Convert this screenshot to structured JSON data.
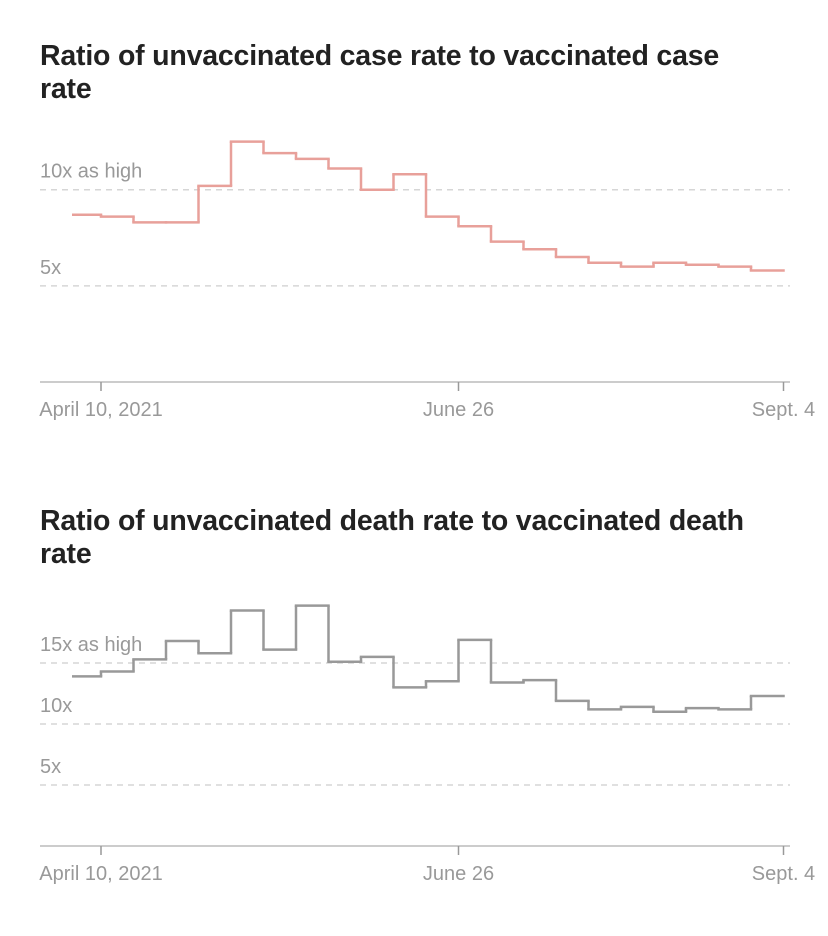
{
  "chart_data": [
    {
      "type": "step",
      "title": "Ratio of unvaccinated case rate to vaccinated case rate",
      "values": [
        8.7,
        8.6,
        8.3,
        8.3,
        10.2,
        12.5,
        11.9,
        11.6,
        11.1,
        10.0,
        10.8,
        8.6,
        8.1,
        7.3,
        6.9,
        6.5,
        6.2,
        6.0,
        6.2,
        6.1,
        6.0,
        5.8
      ],
      "color": "#e8a09a",
      "ylim": [
        0,
        13
      ],
      "yticks": [
        {
          "value": 5,
          "label": "5x"
        },
        {
          "value": 10,
          "label": "10x as high"
        }
      ],
      "xlim": [
        0,
        22
      ],
      "xticks": [
        {
          "value": 1,
          "label": "April 10, 2021"
        },
        {
          "value": 12,
          "label": "June 26"
        },
        {
          "value": 22,
          "label": "Sept. 4"
        }
      ],
      "grid": true
    },
    {
      "type": "step",
      "title": "Ratio of unvaccinated death rate to vaccinated death rate",
      "values": [
        13.9,
        14.3,
        15.3,
        16.8,
        15.8,
        19.3,
        16.1,
        19.7,
        15.1,
        15.5,
        13.0,
        13.5,
        16.9,
        13.4,
        13.6,
        11.9,
        11.2,
        11.4,
        11.0,
        11.3,
        11.2,
        12.3
      ],
      "color": "#999999",
      "ylim": [
        0,
        20
      ],
      "yticks": [
        {
          "value": 5,
          "label": "5x"
        },
        {
          "value": 10,
          "label": "10x"
        },
        {
          "value": 15,
          "label": "15x as high"
        }
      ],
      "xlim": [
        0,
        22
      ],
      "xticks": [
        {
          "value": 1,
          "label": "April 10, 2021"
        },
        {
          "value": 12,
          "label": "June 26"
        },
        {
          "value": 22,
          "label": "Sept. 4"
        }
      ],
      "grid": true
    }
  ]
}
